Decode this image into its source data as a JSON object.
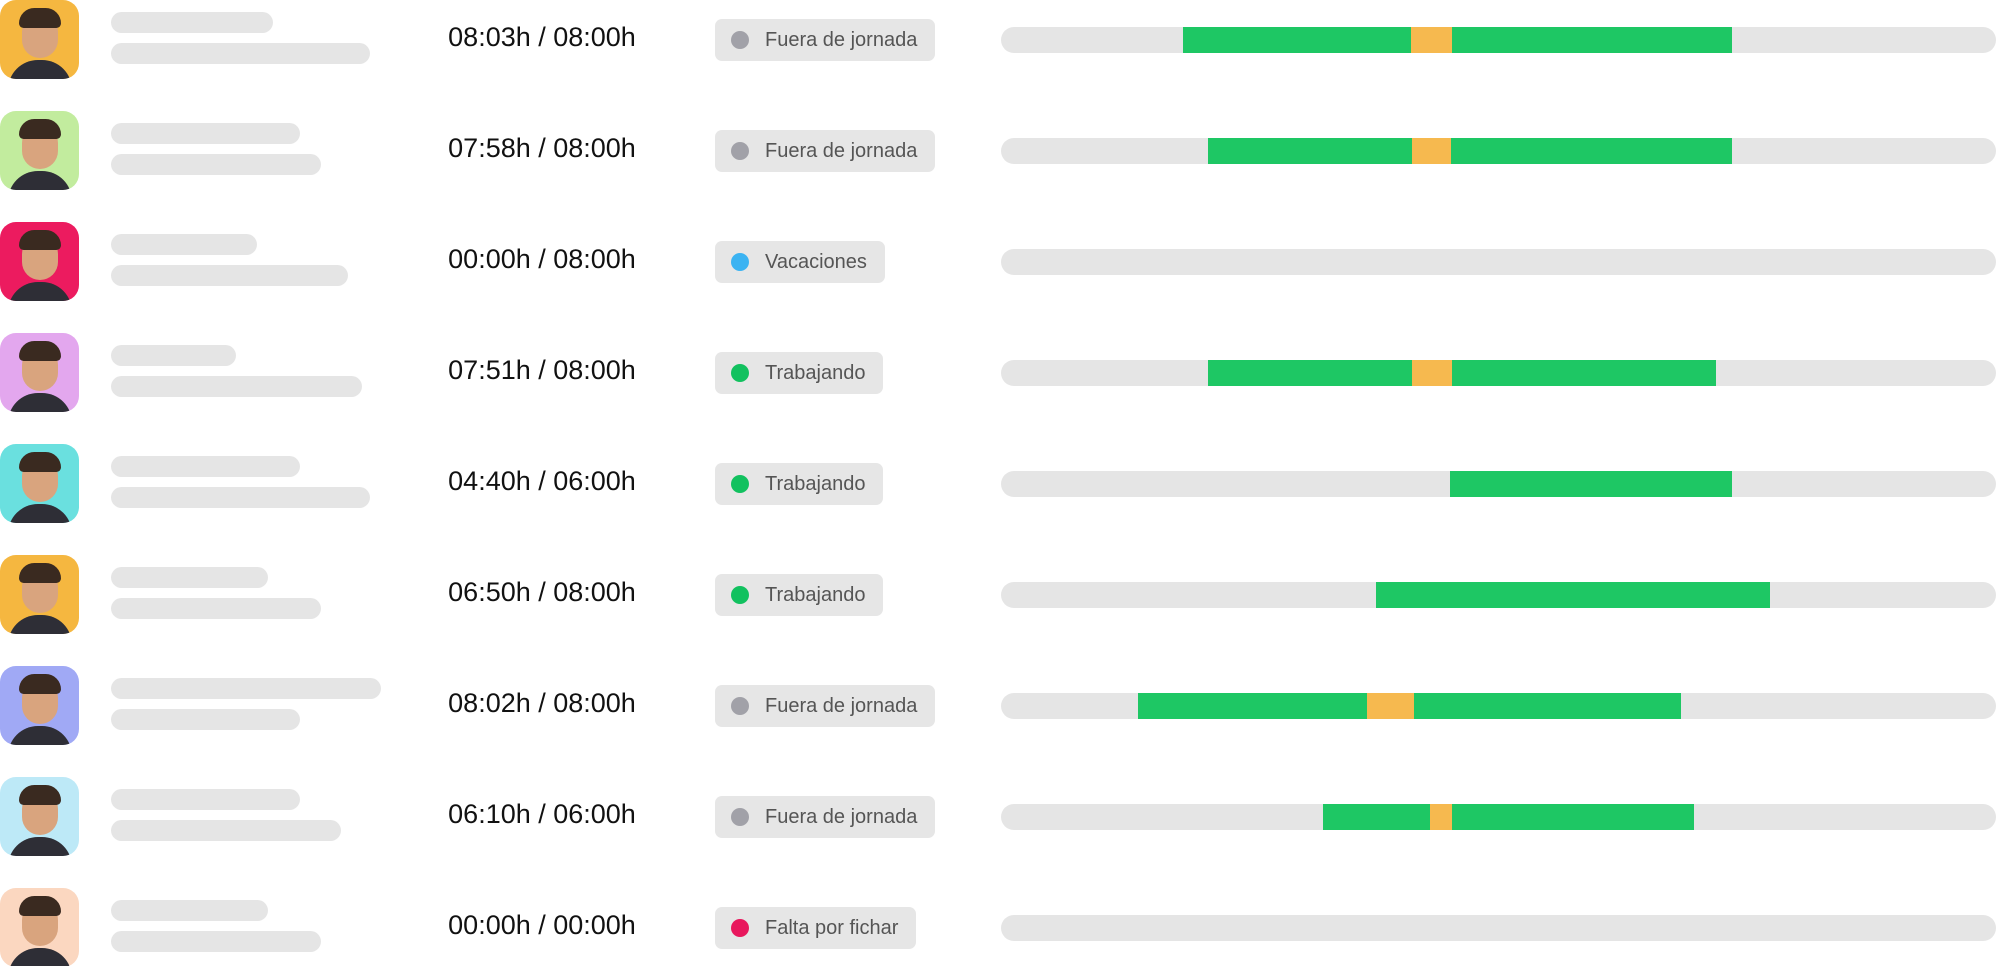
{
  "rows": [
    {
      "time": "08:03h / 08:00h",
      "status": "Fuera de jornada",
      "dot_color": "#a1a1a8"
    },
    {
      "time": "07:58h / 08:00h",
      "status": "Fuera de jornada",
      "dot_color": "#a1a1a8"
    },
    {
      "time": "00:00h / 08:00h",
      "status": "Vacaciones",
      "dot_color": "#3bb3f2"
    },
    {
      "time": "07:51h / 08:00h",
      "status": "Trabajando",
      "dot_color": "#12c15f"
    },
    {
      "time": "04:40h / 06:00h",
      "status": "Trabajando",
      "dot_color": "#12c15f"
    },
    {
      "time": "06:50h / 08:00h",
      "status": "Trabajando",
      "dot_color": "#12c15f"
    },
    {
      "time": "08:02h / 08:00h",
      "status": "Fuera de jornada",
      "dot_color": "#a1a1a8"
    },
    {
      "time": "06:10h / 06:00h",
      "status": "Fuera de jornada",
      "dot_color": "#a1a1a8"
    },
    {
      "time": "00:00h / 00:00h",
      "status": "Falta por fichar",
      "dot_color": "#e8175d"
    }
  ]
}
